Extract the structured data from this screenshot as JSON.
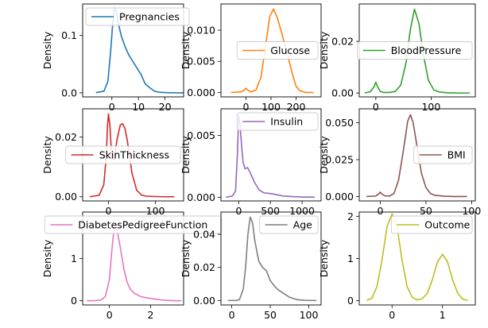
{
  "chart_data": [
    {
      "type": "line",
      "series_name": "Pregnancies",
      "color": "#1f77b4",
      "ylabel": "Density",
      "xlim": [
        -11,
        27
      ],
      "ylim": [
        -0.007,
        0.155
      ],
      "xticks": [
        0,
        10,
        20
      ],
      "yticks": [
        0.0,
        0.1
      ],
      "ytick_labels": [
        "0.0",
        "0.1"
      ],
      "legend": "upper-left",
      "x": [
        -6,
        -3,
        -1.5,
        -0.5,
        0.3,
        1,
        1.7,
        2.5,
        3.5,
        5,
        6.5,
        8,
        9.5,
        11,
        12.5,
        14,
        16,
        18,
        21,
        24,
        27
      ],
      "y": [
        0.0005,
        0.003,
        0.02,
        0.07,
        0.12,
        0.148,
        0.142,
        0.12,
        0.1,
        0.08,
        0.065,
        0.054,
        0.043,
        0.032,
        0.016,
        0.01,
        0.003,
        0.001,
        0.0003,
        0.0001,
        0
      ]
    },
    {
      "type": "line",
      "series_name": "Glucose",
      "color": "#ff7f0e",
      "ylabel": "Density",
      "xlim": [
        -100,
        300
      ],
      "ylim": [
        -0.0007,
        0.0142
      ],
      "xticks": [
        0,
        100,
        200
      ],
      "yticks": [
        0.0,
        0.005,
        0.01
      ],
      "ytick_labels": [
        "0.000",
        "0.005",
        "0.010"
      ],
      "legend": "center-right",
      "x": [
        -60,
        -20,
        -10,
        0,
        10,
        20,
        40,
        60,
        80,
        95,
        110,
        125,
        145,
        165,
        185,
        200,
        215,
        240,
        270
      ],
      "y": [
        0,
        0.0001,
        0.0003,
        0.0007,
        0.0003,
        0.0001,
        0.0004,
        0.0025,
        0.008,
        0.0122,
        0.0134,
        0.012,
        0.0092,
        0.0062,
        0.003,
        0.001,
        0.0003,
        0,
        0
      ]
    },
    {
      "type": "line",
      "series_name": "BloodPressure",
      "color": "#2ca02c",
      "ylabel": "Density",
      "xlim": [
        -30,
        180
      ],
      "ylim": [
        -0.0015,
        0.0345
      ],
      "xticks": [
        0,
        100
      ],
      "yticks": [
        0.0,
        0.02
      ],
      "ytick_labels": [
        "0.00",
        "0.02"
      ],
      "legend": "center-right",
      "x": [
        -20,
        -10,
        -3,
        0,
        3,
        8,
        15,
        25,
        35,
        45,
        55,
        62,
        70,
        78,
        86,
        95,
        105,
        115,
        130,
        150,
        170
      ],
      "y": [
        0,
        0.0005,
        0.0025,
        0.0042,
        0.0025,
        0.0006,
        0.0002,
        0.0002,
        0.0006,
        0.003,
        0.012,
        0.024,
        0.0325,
        0.027,
        0.015,
        0.005,
        0.0012,
        0.0004,
        0.0001,
        0,
        0
      ]
    },
    {
      "type": "line",
      "series_name": "SkinThickness",
      "color": "#d62728",
      "ylabel": "Density",
      "xlim": [
        -55,
        160
      ],
      "ylim": [
        -0.0014,
        0.0295
      ],
      "xticks": [
        0,
        100
      ],
      "yticks": [
        0.0,
        0.02
      ],
      "ytick_labels": [
        "0.00",
        "0.02"
      ],
      "legend": "center-right",
      "x": [
        -40,
        -20,
        -10,
        -5,
        -2,
        0,
        3,
        7,
        12,
        18,
        25,
        30,
        35,
        40,
        50,
        60,
        70,
        80,
        95,
        120,
        140
      ],
      "y": [
        0,
        0.0005,
        0.004,
        0.013,
        0.024,
        0.0278,
        0.024,
        0.013,
        0.0125,
        0.019,
        0.024,
        0.0245,
        0.023,
        0.019,
        0.008,
        0.0022,
        0.0006,
        0.0002,
        0.0001,
        0,
        0
      ]
    },
    {
      "type": "line",
      "series_name": "Insulin",
      "color": "#9467bd",
      "ylabel": "Density",
      "xlim": [
        -280,
        1300
      ],
      "ylim": [
        -0.0003,
        0.00715
      ],
      "xticks": [
        0,
        500,
        1000
      ],
      "yticks": [
        0.0,
        0.005
      ],
      "ytick_labels": [
        "0.000",
        "0.005"
      ],
      "legend": "upper-right",
      "x": [
        -200,
        -100,
        -50,
        -20,
        0,
        20,
        45,
        70,
        100,
        140,
        180,
        250,
        320,
        400,
        500,
        600,
        700,
        850,
        1000,
        1200
      ],
      "y": [
        0,
        0.0001,
        0.0005,
        0.0035,
        0.0066,
        0.006,
        0.0042,
        0.0028,
        0.0023,
        0.0024,
        0.002,
        0.0012,
        0.0006,
        0.00035,
        0.0003,
        0.0002,
        0.0001,
        5e-05,
        2e-05,
        0
      ]
    },
    {
      "type": "line",
      "series_name": "BMI",
      "color": "#8c564b",
      "ylabel": "Density",
      "xlim": [
        -23,
        104
      ],
      "ylim": [
        -0.003,
        0.0595
      ],
      "xticks": [
        0,
        50,
        100
      ],
      "yticks": [
        0.0,
        0.025,
        0.05
      ],
      "ytick_labels": [
        "0.000",
        "0.025",
        "0.050"
      ],
      "legend": "center-right",
      "x": [
        -15,
        -5,
        -1.5,
        0,
        1.5,
        5,
        10,
        15,
        20,
        25,
        30,
        33,
        36,
        40,
        45,
        50,
        55,
        60,
        70,
        80,
        95
      ],
      "y": [
        0,
        0.0003,
        0.0018,
        0.003,
        0.0018,
        0.0004,
        0.0003,
        0.002,
        0.011,
        0.03,
        0.051,
        0.0555,
        0.05,
        0.035,
        0.016,
        0.006,
        0.002,
        0.0008,
        0.0002,
        0,
        0
      ]
    },
    {
      "type": "line",
      "series_name": "DiabetesPedigreeFunction",
      "color": "#e377c2",
      "ylabel": "Density",
      "xlim": [
        -1.3,
        3.6
      ],
      "ylim": [
        -0.1,
        2.1
      ],
      "xticks": [
        0,
        2
      ],
      "yticks": [
        0,
        1
      ],
      "ytick_labels": [
        "0",
        "1"
      ],
      "legend": "upper-center",
      "x": [
        -1.1,
        -0.7,
        -0.4,
        -0.2,
        0,
        0.1,
        0.2,
        0.3,
        0.4,
        0.55,
        0.7,
        0.85,
        1.0,
        1.2,
        1.5,
        1.8,
        2.2,
        2.5,
        2.8,
        3.2,
        3.5
      ],
      "y": [
        0,
        0.002,
        0.02,
        0.1,
        0.5,
        1.1,
        1.6,
        1.85,
        1.6,
        1.2,
        0.75,
        0.45,
        0.28,
        0.18,
        0.1,
        0.07,
        0.04,
        0.02,
        0.01,
        0,
        0
      ]
    },
    {
      "type": "line",
      "series_name": "Age",
      "color": "#7f7f7f",
      "ylabel": "Density",
      "xlim": [
        -14,
        116
      ],
      "ylim": [
        -0.0027,
        0.0535
      ],
      "xticks": [
        0,
        50,
        100
      ],
      "yticks": [
        0.0,
        0.02,
        0.04
      ],
      "ytick_labels": [
        "0.00",
        "0.02",
        "0.04"
      ],
      "legend": "upper-right",
      "x": [
        -5,
        5,
        10,
        15,
        18,
        21,
        24,
        27,
        30,
        35,
        40,
        45,
        50,
        55,
        60,
        65,
        70,
        75,
        85,
        95,
        110
      ],
      "y": [
        0,
        0,
        0.0005,
        0.007,
        0.02,
        0.04,
        0.0505,
        0.047,
        0.036,
        0.024,
        0.02,
        0.018,
        0.012,
        0.009,
        0.0065,
        0.005,
        0.0035,
        0.002,
        0.0005,
        0.0001,
        0
      ]
    },
    {
      "type": "line",
      "series_name": "Outcome",
      "color": "#bcbd22",
      "ylabel": "Density",
      "xlim": [
        -0.65,
        1.65
      ],
      "ylim": [
        -0.1,
        2.1
      ],
      "xticks": [
        0,
        1
      ],
      "yticks": [
        0,
        1,
        2
      ],
      "ytick_labels": [
        "0",
        "1",
        "2"
      ],
      "legend": "upper-right",
      "x": [
        -0.5,
        -0.4,
        -0.3,
        -0.2,
        -0.1,
        0,
        0.1,
        0.2,
        0.3,
        0.4,
        0.5,
        0.6,
        0.7,
        0.8,
        0.9,
        1.0,
        1.1,
        1.2,
        1.3,
        1.4,
        1.5
      ],
      "y": [
        0.01,
        0.06,
        0.33,
        0.95,
        1.75,
        2.06,
        1.75,
        0.95,
        0.33,
        0.08,
        0.02,
        0.05,
        0.18,
        0.5,
        0.92,
        1.1,
        0.92,
        0.5,
        0.18,
        0.04,
        0.005
      ]
    }
  ]
}
